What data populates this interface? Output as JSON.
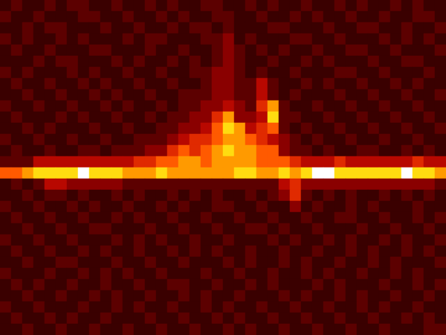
{
  "chart_data": {
    "type": "heatmap",
    "tick_labels": false,
    "color_range": [
      0,
      9
    ],
    "cells": [
      [
        1,
        2,
        1,
        1,
        2,
        1,
        2,
        2,
        1,
        1,
        2,
        1,
        1,
        2,
        1,
        2,
        1,
        1,
        2,
        2,
        1,
        1,
        2,
        1,
        2,
        1,
        1,
        2,
        1,
        1,
        2,
        1,
        2,
        1,
        1,
        2,
        1,
        2,
        1,
        1
      ],
      [
        2,
        1,
        1,
        2,
        1,
        1,
        1,
        2,
        2,
        1,
        1,
        2,
        1,
        1,
        2,
        1,
        2,
        1,
        1,
        2,
        2,
        1,
        1,
        2,
        1,
        1,
        2,
        1,
        2,
        1,
        1,
        2,
        1,
        1,
        2,
        1,
        1,
        2,
        2,
        1
      ],
      [
        1,
        1,
        2,
        1,
        2,
        2,
        1,
        1,
        1,
        2,
        1,
        1,
        2,
        1,
        1,
        2,
        1,
        2,
        2,
        1,
        2,
        1,
        1,
        1,
        2,
        2,
        1,
        1,
        1,
        2,
        1,
        1,
        2,
        2,
        1,
        1,
        2,
        1,
        1,
        2
      ],
      [
        2,
        1,
        2,
        1,
        1,
        2,
        1,
        2,
        1,
        1,
        1,
        2,
        1,
        2,
        2,
        1,
        1,
        1,
        2,
        2,
        3,
        1,
        2,
        1,
        1,
        1,
        2,
        2,
        1,
        1,
        2,
        1,
        1,
        1,
        2,
        1,
        2,
        1,
        2,
        1
      ],
      [
        1,
        2,
        1,
        1,
        2,
        1,
        1,
        1,
        2,
        2,
        1,
        1,
        1,
        2,
        1,
        1,
        2,
        1,
        1,
        2,
        3,
        2,
        1,
        2,
        1,
        2,
        1,
        1,
        2,
        1,
        1,
        2,
        2,
        1,
        1,
        2,
        1,
        1,
        1,
        2
      ],
      [
        1,
        1,
        1,
        2,
        1,
        2,
        2,
        1,
        1,
        1,
        2,
        1,
        2,
        1,
        1,
        2,
        1,
        2,
        1,
        2,
        3,
        2,
        1,
        1,
        2,
        1,
        1,
        2,
        1,
        2,
        1,
        1,
        1,
        2,
        1,
        1,
        2,
        2,
        1,
        1
      ],
      [
        2,
        1,
        2,
        1,
        1,
        1,
        2,
        1,
        2,
        1,
        1,
        2,
        1,
        1,
        2,
        1,
        1,
        2,
        2,
        3,
        3,
        2,
        1,
        2,
        1,
        1,
        2,
        1,
        1,
        1,
        2,
        2,
        1,
        1,
        2,
        1,
        1,
        1,
        2,
        1
      ],
      [
        1,
        2,
        1,
        1,
        2,
        1,
        1,
        2,
        1,
        2,
        1,
        1,
        2,
        1,
        1,
        2,
        1,
        1,
        2,
        3,
        3,
        2,
        2,
        4,
        2,
        1,
        1,
        2,
        1,
        2,
        1,
        1,
        2,
        1,
        1,
        2,
        1,
        2,
        1,
        1
      ],
      [
        1,
        1,
        2,
        1,
        1,
        2,
        1,
        1,
        2,
        1,
        2,
        1,
        1,
        2,
        1,
        1,
        2,
        2,
        2,
        3,
        3,
        2,
        2,
        4,
        2,
        1,
        2,
        1,
        1,
        1,
        2,
        1,
        1,
        2,
        1,
        1,
        2,
        1,
        1,
        2
      ],
      [
        2,
        1,
        1,
        2,
        1,
        1,
        2,
        1,
        1,
        2,
        1,
        2,
        1,
        1,
        2,
        1,
        2,
        2,
        3,
        3,
        4,
        3,
        2,
        5,
        7,
        2,
        1,
        1,
        2,
        1,
        1,
        2,
        1,
        1,
        2,
        1,
        1,
        2,
        1,
        1
      ],
      [
        1,
        2,
        1,
        1,
        1,
        2,
        1,
        2,
        1,
        1,
        2,
        1,
        1,
        2,
        1,
        2,
        2,
        3,
        3,
        5,
        7,
        3,
        3,
        4,
        8,
        2,
        2,
        1,
        1,
        2,
        1,
        1,
        2,
        1,
        1,
        2,
        1,
        1,
        2,
        1
      ],
      [
        1,
        1,
        2,
        1,
        2,
        1,
        1,
        1,
        2,
        1,
        1,
        2,
        1,
        1,
        2,
        2,
        3,
        3,
        4,
        6,
        8,
        7,
        4,
        5,
        6,
        2,
        1,
        2,
        1,
        1,
        2,
        1,
        1,
        2,
        1,
        1,
        2,
        1,
        1,
        2
      ],
      [
        2,
        1,
        1,
        2,
        1,
        1,
        2,
        1,
        1,
        2,
        1,
        1,
        2,
        2,
        2,
        3,
        4,
        5,
        5,
        6,
        7,
        7,
        6,
        5,
        4,
        3,
        2,
        1,
        2,
        1,
        1,
        2,
        1,
        1,
        2,
        1,
        1,
        2,
        1,
        1
      ],
      [
        1,
        2,
        1,
        1,
        2,
        1,
        1,
        2,
        2,
        1,
        2,
        2,
        2,
        3,
        3,
        5,
        6,
        5,
        6,
        7,
        8,
        7,
        7,
        6,
        6,
        3,
        2,
        2,
        1,
        2,
        1,
        1,
        2,
        2,
        1,
        1,
        2,
        1,
        2,
        1
      ],
      [
        2,
        2,
        2,
        4,
        4,
        4,
        4,
        4,
        4,
        4,
        4,
        4,
        5,
        5,
        6,
        6,
        7,
        7,
        6,
        7,
        7,
        7,
        7,
        6,
        6,
        6,
        5,
        4,
        4,
        4,
        5,
        4,
        4,
        4,
        4,
        4,
        4,
        5,
        4,
        4
      ],
      [
        6,
        6,
        7,
        8,
        8,
        8,
        8,
        9,
        8,
        8,
        8,
        7,
        7,
        7,
        8,
        7,
        7,
        7,
        7,
        7,
        7,
        8,
        8,
        7,
        7,
        8,
        7,
        8,
        9,
        9,
        8,
        8,
        8,
        8,
        8,
        8,
        9,
        8,
        8,
        7
      ],
      [
        1,
        2,
        1,
        2,
        4,
        4,
        3,
        3,
        3,
        3,
        3,
        2,
        2,
        2,
        2,
        2,
        2,
        2,
        2,
        2,
        2,
        2,
        2,
        2,
        2,
        4,
        5,
        3,
        3,
        3,
        3,
        3,
        3,
        3,
        3,
        3,
        3,
        3,
        3,
        2
      ],
      [
        1,
        1,
        2,
        1,
        2,
        2,
        1,
        2,
        1,
        1,
        2,
        1,
        2,
        1,
        1,
        2,
        1,
        2,
        1,
        2,
        1,
        1,
        2,
        1,
        2,
        3,
        5,
        2,
        1,
        2,
        1,
        2,
        1,
        1,
        2,
        1,
        2,
        1,
        2,
        1
      ],
      [
        2,
        1,
        1,
        2,
        1,
        1,
        2,
        1,
        2,
        1,
        1,
        2,
        1,
        1,
        2,
        1,
        2,
        1,
        1,
        2,
        2,
        1,
        1,
        2,
        1,
        1,
        3,
        1,
        2,
        1,
        1,
        2,
        1,
        2,
        1,
        1,
        1,
        2,
        1,
        1
      ],
      [
        1,
        2,
        1,
        1,
        2,
        1,
        1,
        2,
        1,
        1,
        2,
        1,
        2,
        1,
        1,
        2,
        1,
        1,
        2,
        1,
        1,
        2,
        1,
        1,
        2,
        1,
        1,
        2,
        1,
        1,
        2,
        2,
        1,
        1,
        2,
        1,
        1,
        2,
        1,
        2
      ],
      [
        1,
        1,
        2,
        1,
        1,
        2,
        1,
        1,
        2,
        2,
        1,
        1,
        1,
        2,
        1,
        1,
        2,
        1,
        1,
        2,
        1,
        1,
        2,
        2,
        1,
        2,
        1,
        1,
        2,
        1,
        1,
        1,
        2,
        1,
        1,
        2,
        1,
        1,
        2,
        1
      ],
      [
        2,
        1,
        1,
        2,
        1,
        1,
        2,
        1,
        1,
        1,
        2,
        1,
        2,
        1,
        2,
        1,
        1,
        2,
        1,
        1,
        2,
        1,
        1,
        1,
        2,
        1,
        2,
        1,
        1,
        2,
        1,
        2,
        1,
        1,
        2,
        1,
        2,
        1,
        1,
        2
      ],
      [
        1,
        2,
        1,
        1,
        2,
        1,
        1,
        2,
        1,
        2,
        1,
        1,
        2,
        1,
        1,
        2,
        1,
        2,
        1,
        2,
        1,
        1,
        2,
        1,
        1,
        2,
        1,
        1,
        2,
        1,
        1,
        2,
        1,
        2,
        1,
        1,
        2,
        1,
        2,
        1
      ],
      [
        1,
        1,
        2,
        1,
        1,
        2,
        2,
        1,
        1,
        1,
        2,
        1,
        1,
        2,
        1,
        1,
        2,
        1,
        1,
        1,
        2,
        1,
        2,
        1,
        1,
        2,
        1,
        2,
        1,
        1,
        2,
        1,
        1,
        2,
        1,
        2,
        1,
        1,
        1,
        2
      ],
      [
        2,
        1,
        1,
        1,
        2,
        1,
        1,
        2,
        1,
        2,
        1,
        2,
        1,
        1,
        2,
        1,
        1,
        1,
        2,
        1,
        1,
        2,
        1,
        1,
        2,
        1,
        1,
        2,
        1,
        2,
        1,
        1,
        2,
        1,
        1,
        2,
        1,
        2,
        1,
        1
      ],
      [
        1,
        2,
        1,
        2,
        1,
        1,
        2,
        1,
        1,
        2,
        1,
        1,
        2,
        1,
        1,
        2,
        2,
        1,
        1,
        2,
        1,
        1,
        2,
        1,
        2,
        1,
        1,
        1,
        2,
        1,
        2,
        1,
        1,
        1,
        2,
        1,
        1,
        2,
        1,
        2
      ],
      [
        1,
        1,
        2,
        1,
        1,
        2,
        1,
        1,
        2,
        1,
        2,
        1,
        1,
        2,
        1,
        1,
        2,
        1,
        2,
        1,
        1,
        2,
        1,
        1,
        1,
        2,
        1,
        2,
        1,
        1,
        2,
        1,
        2,
        1,
        1,
        2,
        1,
        1,
        2,
        1
      ],
      [
        2,
        1,
        1,
        2,
        1,
        1,
        1,
        2,
        1,
        1,
        2,
        1,
        2,
        1,
        1,
        2,
        1,
        1,
        2,
        1,
        2,
        1,
        1,
        2,
        1,
        1,
        2,
        1,
        1,
        2,
        1,
        1,
        2,
        1,
        2,
        1,
        1,
        2,
        1,
        1
      ],
      [
        1,
        2,
        1,
        1,
        2,
        1,
        2,
        1,
        1,
        2,
        1,
        1,
        1,
        2,
        1,
        1,
        2,
        1,
        1,
        2,
        1,
        2,
        1,
        1,
        2,
        1,
        1,
        2,
        1,
        1,
        2,
        1,
        1,
        2,
        1,
        1,
        2,
        1,
        2,
        1
      ],
      [
        1,
        1,
        2,
        1,
        1,
        2,
        1,
        1,
        2,
        1,
        1,
        2,
        1,
        1,
        2,
        1,
        1,
        2,
        1,
        1,
        2,
        1,
        2,
        1,
        1,
        2,
        1,
        1,
        2,
        1,
        1,
        2,
        1,
        1,
        2,
        1,
        1,
        1,
        2,
        2
      ]
    ]
  }
}
